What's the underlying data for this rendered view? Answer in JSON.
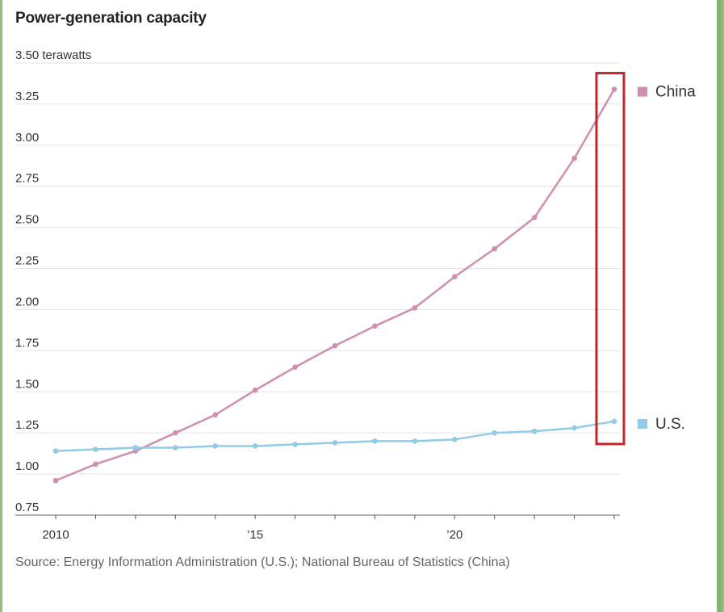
{
  "chart_data": {
    "type": "line",
    "title": "Power-generation capacity",
    "ylabel_unit": "terawatts",
    "x": [
      2010,
      2011,
      2012,
      2013,
      2014,
      2015,
      2016,
      2017,
      2018,
      2019,
      2020,
      2021,
      2022,
      2023,
      2024
    ],
    "xlim": [
      2010,
      2024
    ],
    "ylim": [
      0.75,
      3.5
    ],
    "y_ticks": [
      {
        "value": 3.5,
        "label": "3.50 terawatts"
      },
      {
        "value": 3.25,
        "label": "3.25"
      },
      {
        "value": 3.0,
        "label": "3.00"
      },
      {
        "value": 2.75,
        "label": "2.75"
      },
      {
        "value": 2.5,
        "label": "2.50"
      },
      {
        "value": 2.25,
        "label": "2.25"
      },
      {
        "value": 2.0,
        "label": "2.00"
      },
      {
        "value": 1.75,
        "label": "1.75"
      },
      {
        "value": 1.5,
        "label": "1.50"
      },
      {
        "value": 1.25,
        "label": "1.25"
      },
      {
        "value": 1.0,
        "label": "1.00"
      },
      {
        "value": 0.75,
        "label": "0.75"
      }
    ],
    "x_tick_labels": [
      {
        "value": 2010,
        "label": "2010"
      },
      {
        "value": 2015,
        "label": "’15"
      },
      {
        "value": 2020,
        "label": "’20"
      }
    ],
    "series": [
      {
        "name": "China",
        "color": "#d18fb0",
        "values": [
          0.96,
          1.06,
          1.14,
          1.25,
          1.36,
          1.51,
          1.65,
          1.78,
          1.9,
          2.01,
          2.2,
          2.37,
          2.56,
          2.92,
          3.34
        ]
      },
      {
        "name": "U.S.",
        "color": "#92cbe8",
        "values": [
          1.14,
          1.15,
          1.16,
          1.16,
          1.17,
          1.17,
          1.18,
          1.19,
          1.2,
          1.2,
          1.21,
          1.25,
          1.26,
          1.28,
          1.32
        ]
      }
    ],
    "grid": true,
    "legend": "right, at line ends",
    "highlight_box_color": "#c0272d"
  },
  "source": "Source: Energy Information Administration (U.S.); National Bureau of Statistics (China)"
}
